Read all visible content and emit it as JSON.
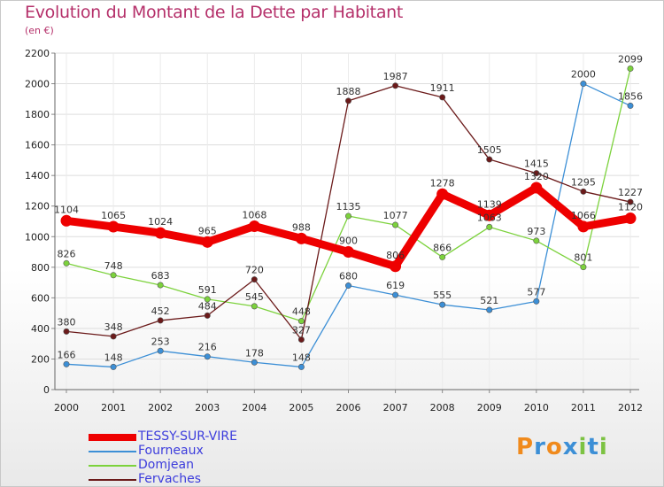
{
  "header": {
    "title": "Evolution du Montant de la Dette par Habitant",
    "subtitle": "(en €)"
  },
  "logo": {
    "text": "Proxiti",
    "colors": [
      "#f08a1c",
      "#3c8fd6",
      "#f08a1c",
      "#3c8fd6",
      "#7cc242",
      "#3c8fd6",
      "#7cc242"
    ]
  },
  "chart_data": {
    "type": "line",
    "x": [
      "2000",
      "2001",
      "2002",
      "2003",
      "2004",
      "2005",
      "2006",
      "2007",
      "2008",
      "2009",
      "2010",
      "2011",
      "2012"
    ],
    "ylim": [
      0,
      2200
    ],
    "yticks": [
      0,
      200,
      400,
      600,
      800,
      1000,
      1200,
      1400,
      1600,
      1800,
      2000,
      2200
    ],
    "grid": true,
    "legend_position": "bottom-left",
    "series": [
      {
        "name": "TESSY-SUR-VIRE",
        "color": "#ee0000",
        "emphasis": true,
        "values": [
          1104,
          1065,
          1024,
          965,
          1068,
          988,
          900,
          806,
          1278,
          1139,
          1320,
          1066,
          1120
        ]
      },
      {
        "name": "Fourneaux",
        "color": "#3c8fd6",
        "emphasis": false,
        "values": [
          166,
          148,
          253,
          216,
          178,
          148,
          680,
          619,
          555,
          521,
          577,
          2000,
          1856
        ]
      },
      {
        "name": "Domjean",
        "color": "#7cd23c",
        "emphasis": false,
        "values": [
          826,
          748,
          683,
          591,
          545,
          448,
          1135,
          1077,
          866,
          1063,
          973,
          801,
          2099
        ]
      },
      {
        "name": "Fervaches",
        "color": "#6b1a1a",
        "emphasis": false,
        "values": [
          380,
          348,
          452,
          484,
          720,
          327,
          1888,
          1987,
          1911,
          1505,
          1415,
          1295,
          1227
        ]
      }
    ]
  }
}
